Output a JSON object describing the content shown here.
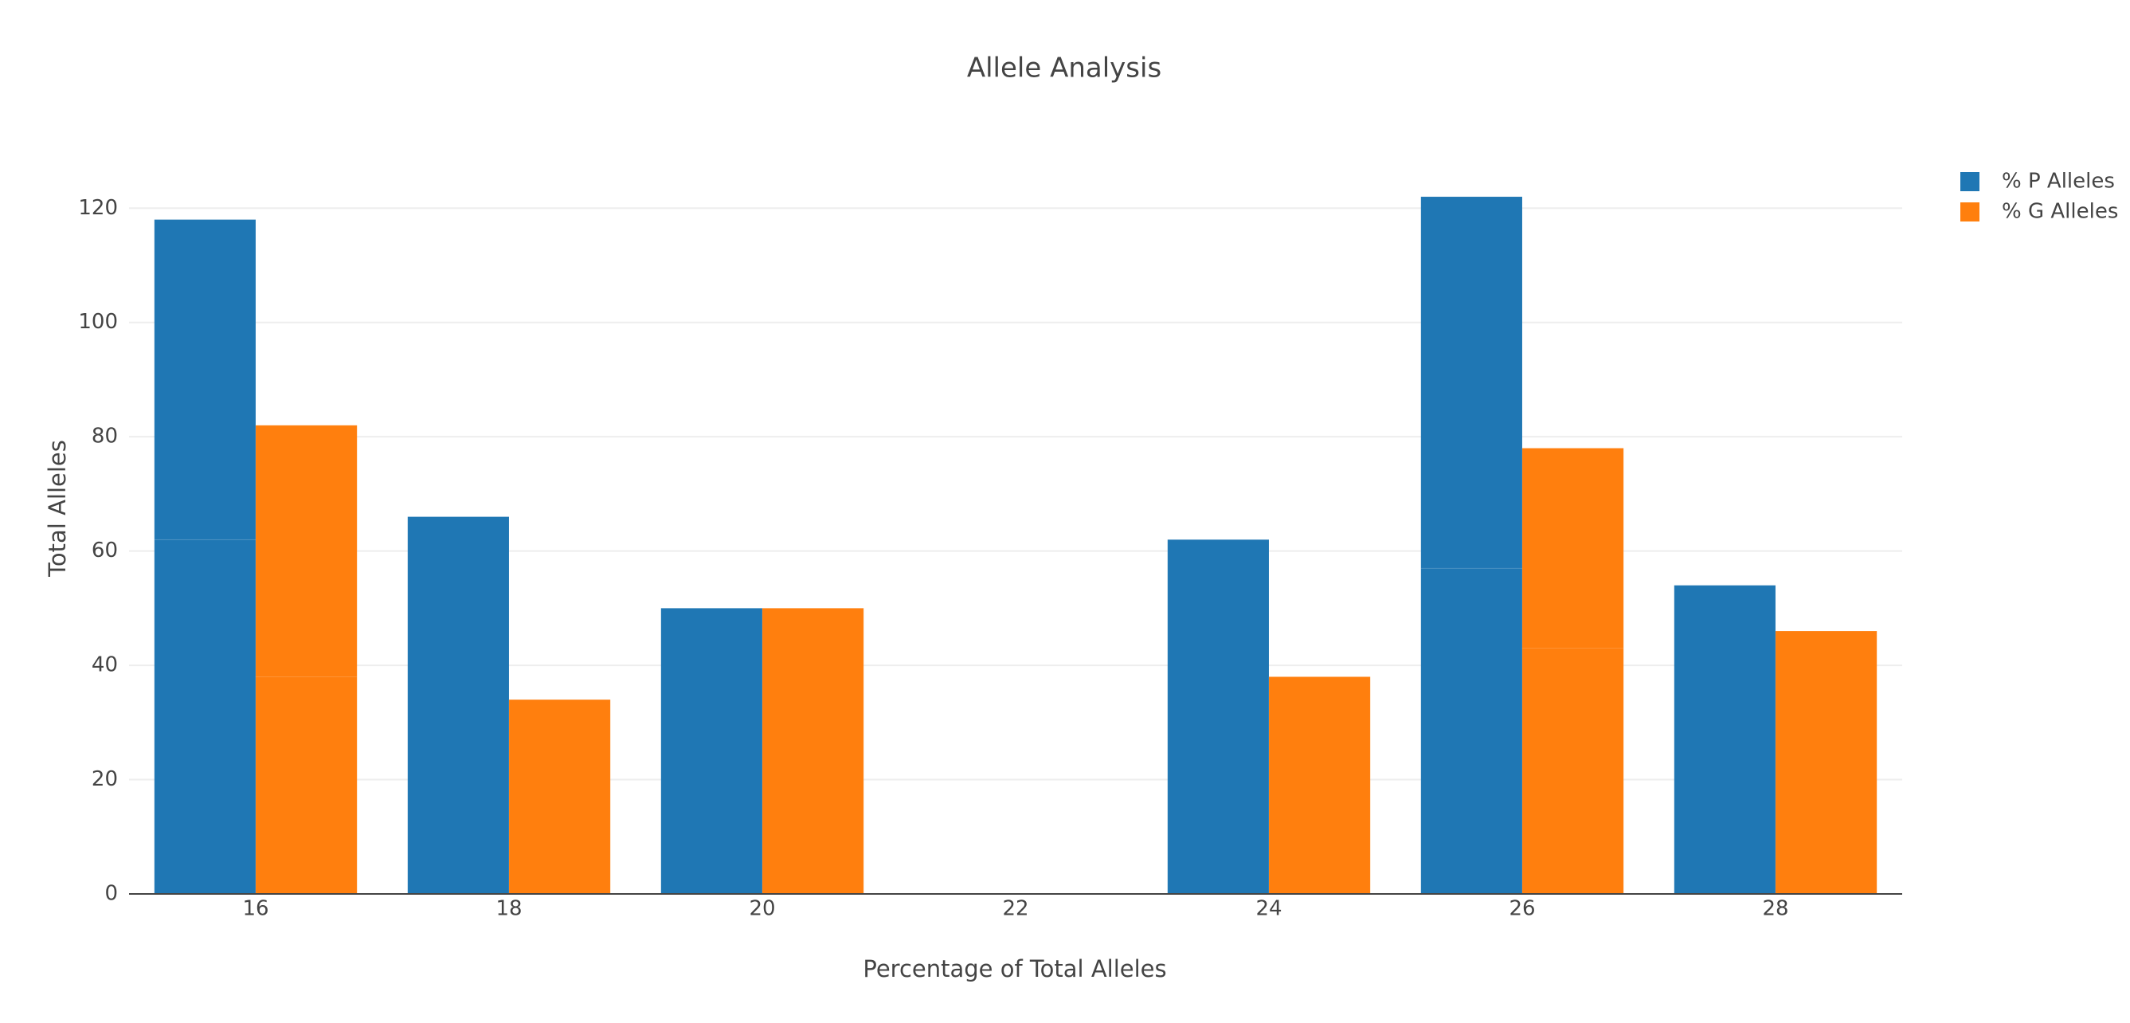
{
  "chart_data": {
    "type": "bar",
    "title": "Allele Analysis",
    "x_label": "Percentage of Total Alleles",
    "y_label": "Total Alleles",
    "x": [
      16,
      16,
      18,
      20,
      24,
      26,
      26,
      28
    ],
    "series": [
      {
        "name": "% P Alleles",
        "color": "#1f77b4",
        "values": [
          62,
          56,
          66,
          50,
          62,
          57,
          65,
          54
        ]
      },
      {
        "name": "% G Alleles",
        "color": "#ff7f0e",
        "values": [
          38,
          44,
          34,
          50,
          38,
          43,
          35,
          46
        ]
      }
    ],
    "xlim": [
      15,
      29
    ],
    "xticks": [
      16,
      18,
      20,
      22,
      24,
      26,
      28
    ],
    "ylim": [
      0,
      128.4
    ],
    "yticks": [
      0,
      20,
      40,
      60,
      80,
      100,
      120
    ],
    "grid": true,
    "legend": "top-right"
  }
}
